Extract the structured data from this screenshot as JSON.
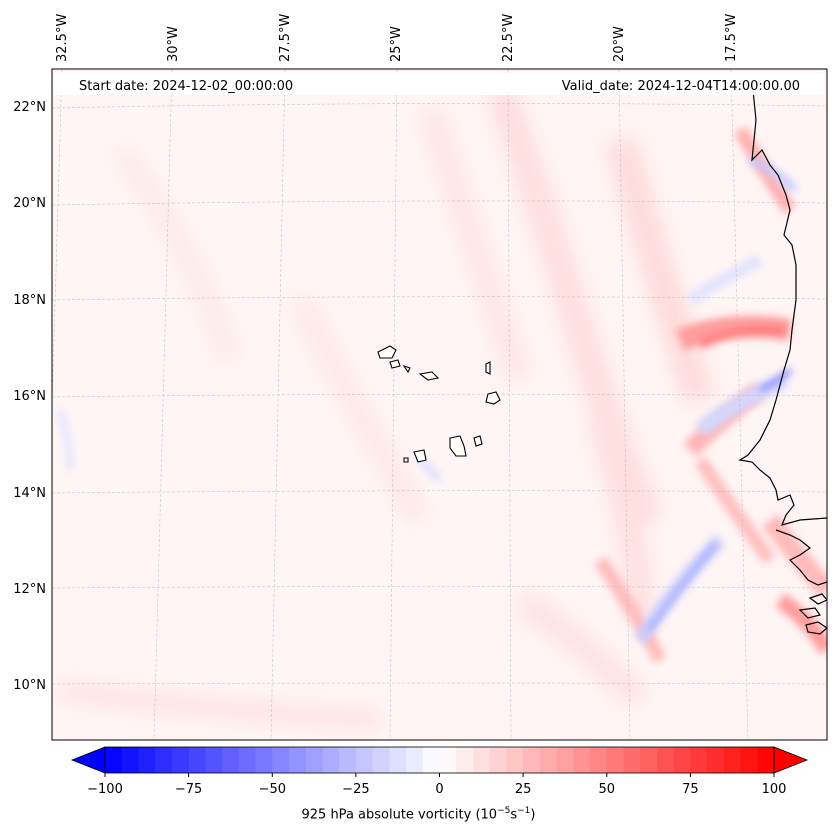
{
  "header": {
    "start_date": "Start date: 2024-12-02_00:00:00",
    "valid_date": "Valid_date: 2024-12-04T14:00:00.00"
  },
  "map": {
    "longitude_labels": [
      "32.5°W",
      "30°W",
      "27.5°W",
      "25°W",
      "22.5°W",
      "20°W",
      "17.5°W"
    ],
    "latitude_labels": [
      "22°N",
      "20°N",
      "18°N",
      "16°N",
      "14°N",
      "12°N",
      "10°N"
    ],
    "gridlines": true,
    "coastline_color": "#000000",
    "islands": "Cape Verde",
    "coast": "West Africa (Mauritania, Senegal, Gambia, Guinea-Bissau)"
  },
  "colorbar": {
    "ticks": [
      "−100",
      "−75",
      "−50",
      "−25",
      "0",
      "25",
      "50",
      "75",
      "100"
    ],
    "min": -100,
    "max": 100,
    "step": 5,
    "colormap": "bwr",
    "extend": "both",
    "label_main": "925 hPa absolute vorticity (10",
    "label_exp1": "−5",
    "label_mid": "s",
    "label_exp2": "−1",
    "label_end": ")"
  },
  "colors": {
    "negative": "#0000ff",
    "zero": "#ffffff",
    "positive": "#ff0000"
  }
}
